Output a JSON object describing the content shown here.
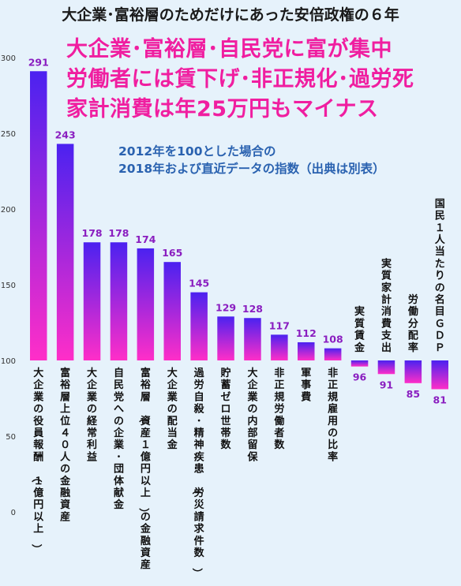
{
  "headline": "大企業･富裕層のためだけにあった安倍政権の６年",
  "messages": [
    "大企業･富裕層･自民党に富が集中",
    "労働者には賃下げ･非正規化･過労死",
    "家計消費は年25万円もマイナス"
  ],
  "note_lines": [
    "2012年を100とした場合の",
    "2018年および直近データの指数（出典は別表）"
  ],
  "colors": {
    "background": "#e6f2fb",
    "bar_top": "#4b22f0",
    "bar_bottom": "#ff2ec8",
    "value_label": "#8a1ec0",
    "message": "#f01ea0",
    "note": "#2a62b0"
  },
  "chart_data": {
    "type": "bar",
    "baseline": 100,
    "ylim": [
      0,
      300
    ],
    "yticks": [
      0,
      50,
      100,
      150,
      200,
      250,
      300
    ],
    "grid": false,
    "categories": [
      "大企業の役員報酬（１億円以上）",
      "富裕層上位４０人の金融資産",
      "大企業の経常利益",
      "自民党への企業･団体献金",
      "富裕層（資産１億円以上）の金融資産",
      "大企業の配当金",
      "過労自殺･精神疾患（労災請求件数）",
      "貯蓄ゼロ世帯数",
      "大企業の内部留保",
      "非正規労働者数",
      "軍事費",
      "非正規雇用の比率",
      "実質賃金",
      "実質家計消費支出",
      "労働分配率",
      "国民１人当たりの名目ＧＤＰ"
    ],
    "values": [
      291,
      243,
      178,
      178,
      174,
      165,
      145,
      129,
      128,
      117,
      112,
      108,
      96,
      91,
      85,
      81
    ],
    "value_labels": [
      "291",
      "243",
      "178",
      "178",
      "174",
      "165",
      "145",
      "129",
      "128",
      "117",
      "112",
      "108",
      "96",
      "91",
      "85",
      "81"
    ]
  }
}
